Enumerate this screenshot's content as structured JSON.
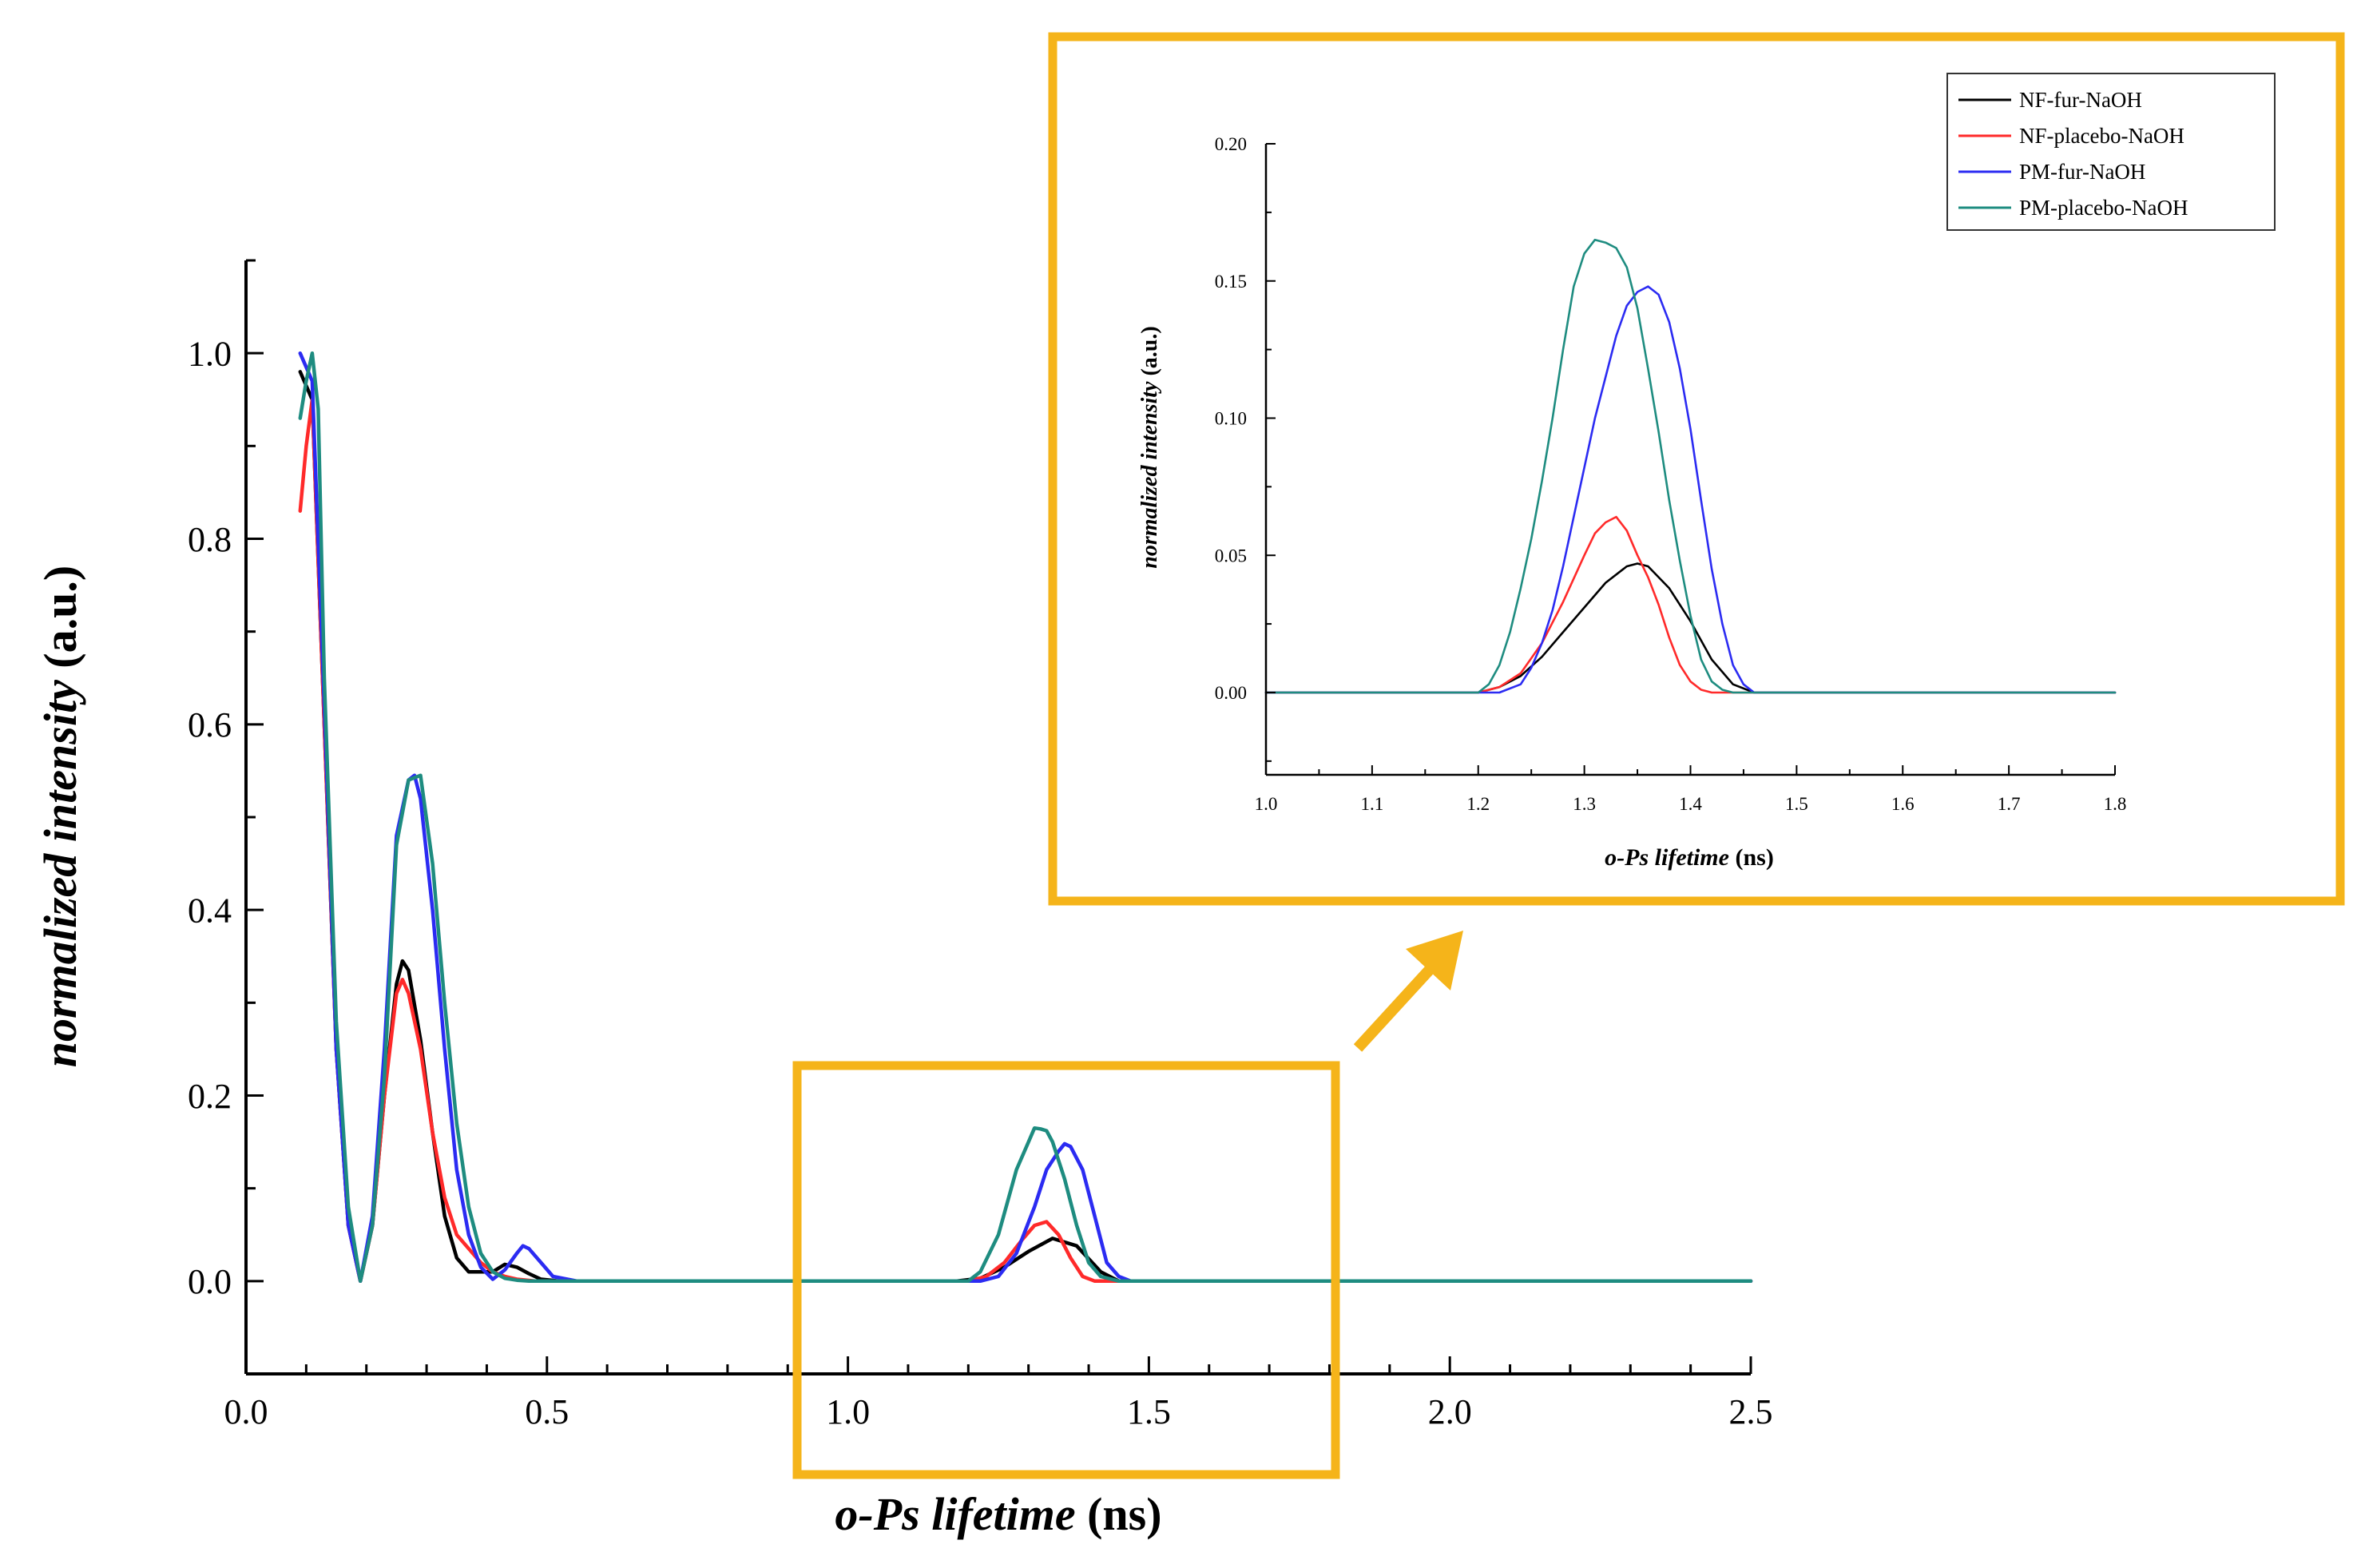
{
  "colors": {
    "highlight": "#F5B41A",
    "axis": "#000000",
    "series": [
      "#000000",
      "#FF2A2A",
      "#2B2BF2",
      "#1E8C80"
    ]
  },
  "chart_data": [
    {
      "id": "main",
      "type": "line",
      "title": "",
      "xlabel": {
        "italic": "o-Ps lifetime",
        "unit": " (ns)"
      },
      "ylabel": {
        "italic": "normalized intensity",
        "unit": " (a.u.)"
      },
      "xlim": [
        0.0,
        2.5
      ],
      "ylim": [
        -0.1,
        1.1
      ],
      "xticks": [
        "0.0",
        "0.5",
        "1.0",
        "1.5",
        "2.0",
        "2.5"
      ],
      "yticks": [
        "0.0",
        "0.2",
        "0.4",
        "0.6",
        "0.8",
        "1.0"
      ],
      "grid": false,
      "series": [
        {
          "name": "NF-fur-NaOH",
          "x": [
            0.09,
            0.11,
            0.13,
            0.15,
            0.17,
            0.19,
            0.21,
            0.23,
            0.25,
            0.26,
            0.27,
            0.29,
            0.31,
            0.33,
            0.35,
            0.37,
            0.39,
            0.41,
            0.43,
            0.45,
            0.47,
            0.49,
            0.52,
            0.55,
            1.0,
            1.18,
            1.22,
            1.26,
            1.3,
            1.34,
            1.38,
            1.42,
            1.45,
            1.5,
            2.5
          ],
          "y": [
            0.98,
            0.95,
            0.6,
            0.25,
            0.06,
            0.0,
            0.06,
            0.2,
            0.32,
            0.345,
            0.335,
            0.26,
            0.16,
            0.07,
            0.025,
            0.01,
            0.01,
            0.01,
            0.018,
            0.015,
            0.008,
            0.002,
            0.0,
            0.0,
            0.0,
            0.0,
            0.003,
            0.015,
            0.032,
            0.046,
            0.038,
            0.01,
            0.0,
            0.0,
            0.0
          ]
        },
        {
          "name": "NF-placebo-NaOH",
          "x": [
            0.09,
            0.1,
            0.11,
            0.13,
            0.15,
            0.17,
            0.19,
            0.21,
            0.23,
            0.25,
            0.26,
            0.27,
            0.29,
            0.31,
            0.33,
            0.35,
            0.37,
            0.39,
            0.41,
            0.43,
            0.45,
            0.48,
            0.55,
            1.0,
            1.2,
            1.23,
            1.26,
            1.29,
            1.31,
            1.33,
            1.35,
            1.37,
            1.39,
            1.41,
            1.45,
            2.5
          ],
          "y": [
            0.83,
            0.9,
            0.95,
            0.6,
            0.25,
            0.06,
            0.0,
            0.06,
            0.2,
            0.31,
            0.325,
            0.31,
            0.25,
            0.16,
            0.09,
            0.05,
            0.035,
            0.02,
            0.01,
            0.005,
            0.002,
            0.0,
            0.0,
            0.0,
            0.0,
            0.005,
            0.02,
            0.045,
            0.06,
            0.064,
            0.05,
            0.025,
            0.005,
            0.0,
            0.0,
            0.0
          ]
        },
        {
          "name": "PM-fur-NaOH",
          "x": [
            0.09,
            0.11,
            0.13,
            0.15,
            0.17,
            0.19,
            0.21,
            0.23,
            0.25,
            0.27,
            0.28,
            0.29,
            0.31,
            0.33,
            0.35,
            0.37,
            0.39,
            0.41,
            0.43,
            0.45,
            0.46,
            0.47,
            0.49,
            0.51,
            0.55,
            1.0,
            1.22,
            1.25,
            1.28,
            1.31,
            1.33,
            1.35,
            1.36,
            1.37,
            1.39,
            1.41,
            1.43,
            1.45,
            1.47,
            2.5
          ],
          "y": [
            1.0,
            0.97,
            0.62,
            0.25,
            0.06,
            0.0,
            0.07,
            0.25,
            0.48,
            0.54,
            0.545,
            0.52,
            0.4,
            0.25,
            0.12,
            0.05,
            0.015,
            0.002,
            0.012,
            0.03,
            0.038,
            0.035,
            0.02,
            0.005,
            0.0,
            0.0,
            0.0,
            0.005,
            0.03,
            0.08,
            0.12,
            0.14,
            0.148,
            0.145,
            0.12,
            0.07,
            0.02,
            0.005,
            0.0,
            0.0
          ]
        },
        {
          "name": "PM-placebo-NaOH",
          "x": [
            0.09,
            0.1,
            0.11,
            0.12,
            0.13,
            0.15,
            0.17,
            0.19,
            0.21,
            0.23,
            0.25,
            0.27,
            0.29,
            0.31,
            0.33,
            0.35,
            0.37,
            0.39,
            0.41,
            0.43,
            0.45,
            0.47,
            0.5,
            0.55,
            1.0,
            1.2,
            1.22,
            1.25,
            1.28,
            1.3,
            1.31,
            1.32,
            1.33,
            1.34,
            1.36,
            1.38,
            1.4,
            1.42,
            1.45,
            2.5
          ],
          "y": [
            0.93,
            0.97,
            1.0,
            0.94,
            0.65,
            0.28,
            0.08,
            0.0,
            0.06,
            0.22,
            0.47,
            0.54,
            0.545,
            0.45,
            0.3,
            0.17,
            0.08,
            0.03,
            0.01,
            0.003,
            0.001,
            0.0,
            0.0,
            0.0,
            0.0,
            0.0,
            0.01,
            0.05,
            0.12,
            0.15,
            0.165,
            0.164,
            0.162,
            0.15,
            0.11,
            0.06,
            0.02,
            0.005,
            0.0,
            0.0
          ]
        }
      ]
    },
    {
      "id": "inset",
      "type": "line",
      "title": "",
      "xlabel": {
        "italic": "o-Ps lifetime",
        "unit": " (ns)"
      },
      "ylabel": {
        "italic": "normalized intensity",
        "unit": " (a.u.)"
      },
      "xlim": [
        1.0,
        1.8
      ],
      "ylim": [
        -0.03,
        0.2
      ],
      "xticks": [
        "1.0",
        "1.1",
        "1.2",
        "1.3",
        "1.4",
        "1.5",
        "1.6",
        "1.7",
        "1.8"
      ],
      "yticks": [
        "0.00",
        "0.05",
        "0.10",
        "0.15",
        "0.20"
      ],
      "grid": false,
      "legend": {
        "position": "top-right",
        "entries": [
          "NF-fur-NaOH",
          "NF-placebo-NaOH",
          "PM-fur-NaOH",
          "PM-placebo-NaOH"
        ]
      },
      "series": [
        {
          "name": "NF-fur-NaOH",
          "x": [
            1.0,
            1.2,
            1.22,
            1.24,
            1.26,
            1.28,
            1.3,
            1.32,
            1.34,
            1.35,
            1.36,
            1.38,
            1.4,
            1.42,
            1.44,
            1.46,
            1.8
          ],
          "y": [
            0.0,
            0.0,
            0.002,
            0.006,
            0.013,
            0.022,
            0.031,
            0.04,
            0.046,
            0.047,
            0.046,
            0.038,
            0.026,
            0.012,
            0.003,
            0.0,
            0.0
          ]
        },
        {
          "name": "NF-placebo-NaOH",
          "x": [
            1.0,
            1.2,
            1.22,
            1.24,
            1.26,
            1.28,
            1.3,
            1.31,
            1.32,
            1.33,
            1.34,
            1.35,
            1.36,
            1.37,
            1.38,
            1.39,
            1.4,
            1.41,
            1.42,
            1.8
          ],
          "y": [
            0.0,
            0.0,
            0.002,
            0.007,
            0.018,
            0.033,
            0.05,
            0.058,
            0.062,
            0.064,
            0.059,
            0.05,
            0.042,
            0.032,
            0.02,
            0.01,
            0.004,
            0.001,
            0.0,
            0.0
          ]
        },
        {
          "name": "PM-fur-NaOH",
          "x": [
            1.0,
            1.22,
            1.24,
            1.25,
            1.26,
            1.27,
            1.28,
            1.29,
            1.3,
            1.31,
            1.32,
            1.33,
            1.34,
            1.35,
            1.36,
            1.37,
            1.38,
            1.39,
            1.4,
            1.41,
            1.42,
            1.43,
            1.44,
            1.45,
            1.46,
            1.8
          ],
          "y": [
            0.0,
            0.0,
            0.003,
            0.009,
            0.018,
            0.03,
            0.046,
            0.064,
            0.082,
            0.1,
            0.115,
            0.13,
            0.141,
            0.146,
            0.148,
            0.145,
            0.135,
            0.118,
            0.096,
            0.07,
            0.045,
            0.025,
            0.01,
            0.003,
            0.0,
            0.0
          ]
        },
        {
          "name": "PM-placebo-NaOH",
          "x": [
            1.0,
            1.2,
            1.21,
            1.22,
            1.23,
            1.24,
            1.25,
            1.26,
            1.27,
            1.28,
            1.29,
            1.3,
            1.31,
            1.32,
            1.33,
            1.34,
            1.35,
            1.36,
            1.37,
            1.38,
            1.39,
            1.4,
            1.41,
            1.42,
            1.43,
            1.44,
            1.8
          ],
          "y": [
            0.0,
            0.0,
            0.003,
            0.01,
            0.022,
            0.038,
            0.056,
            0.077,
            0.1,
            0.125,
            0.148,
            0.16,
            0.165,
            0.164,
            0.162,
            0.155,
            0.14,
            0.118,
            0.095,
            0.07,
            0.048,
            0.028,
            0.012,
            0.004,
            0.001,
            0.0,
            0.0
          ]
        }
      ]
    }
  ]
}
